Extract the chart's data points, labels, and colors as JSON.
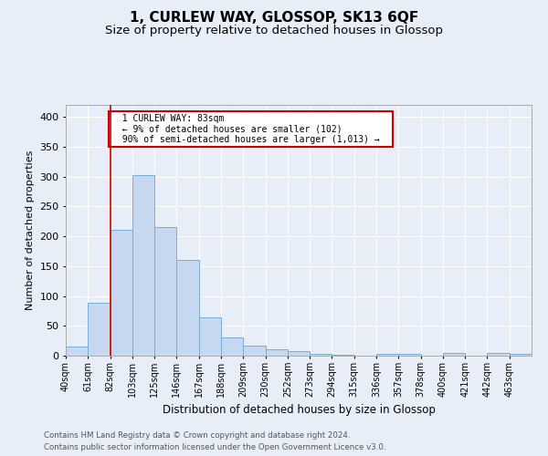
{
  "title": "1, CURLEW WAY, GLOSSOP, SK13 6QF",
  "subtitle": "Size of property relative to detached houses in Glossop",
  "xlabel": "Distribution of detached houses by size in Glossop",
  "ylabel": "Number of detached properties",
  "footer_line1": "Contains HM Land Registry data © Crown copyright and database right 2024.",
  "footer_line2": "Contains public sector information licensed under the Open Government Licence v3.0.",
  "bin_labels": [
    "40sqm",
    "61sqm",
    "82sqm",
    "103sqm",
    "125sqm",
    "146sqm",
    "167sqm",
    "188sqm",
    "209sqm",
    "230sqm",
    "252sqm",
    "273sqm",
    "294sqm",
    "315sqm",
    "336sqm",
    "357sqm",
    "378sqm",
    "400sqm",
    "421sqm",
    "442sqm",
    "463sqm"
  ],
  "bar_values": [
    15,
    88,
    211,
    303,
    215,
    160,
    64,
    30,
    17,
    10,
    7,
    3,
    2,
    0,
    3,
    3,
    0,
    4,
    0,
    4,
    3
  ],
  "bar_color": "#c5d8f0",
  "bar_edge_color": "#7aadd4",
  "property_line_x": 82,
  "property_line_color": "#cc0000",
  "annotation_text": "  1 CURLEW WAY: 83sqm  \n  ← 9% of detached houses are smaller (102)  \n  90% of semi-detached houses are larger (1,013) →  ",
  "annotation_box_color": "#cc0000",
  "ylim": [
    0,
    420
  ],
  "yticks": [
    0,
    50,
    100,
    150,
    200,
    250,
    300,
    350,
    400
  ],
  "background_color": "#e8eef8",
  "plot_bg_color": "#e8eef8",
  "grid_color": "#ffffff",
  "title_fontsize": 11,
  "subtitle_fontsize": 9.5
}
